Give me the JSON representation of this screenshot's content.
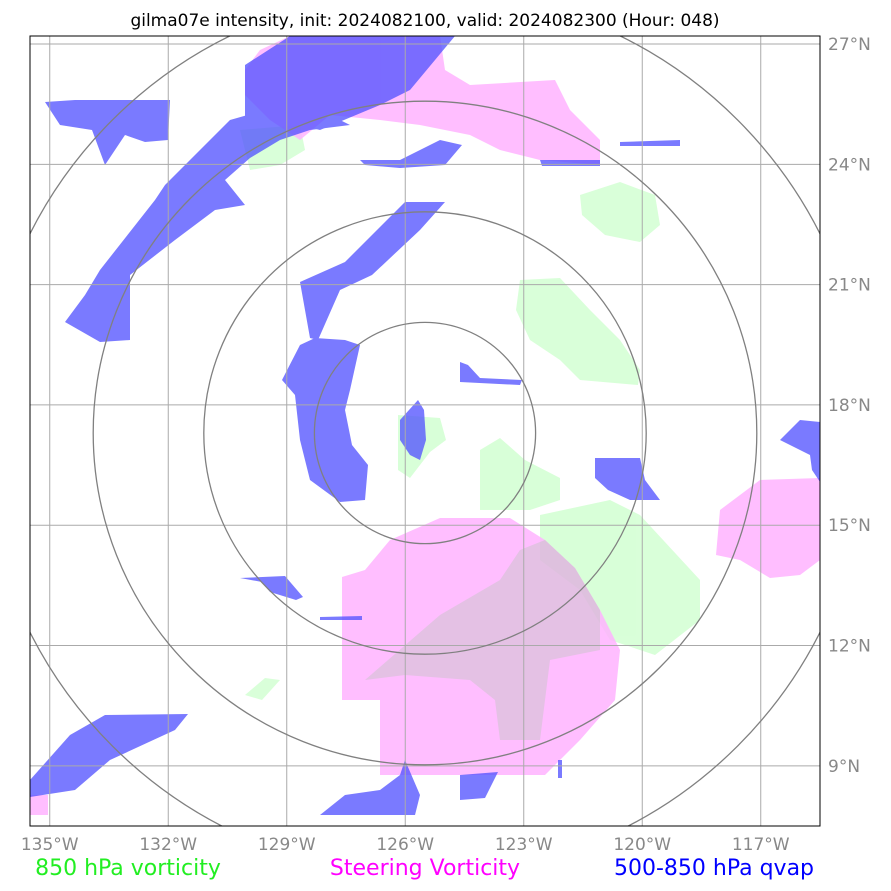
{
  "title": "gilma07e intensity, init: 2024082100, valid: 2024082300 (Hour: 048)",
  "map": {
    "lon_range": [
      -135.5,
      -115.5
    ],
    "lat_range": [
      7.5,
      27.2
    ],
    "lon_ticks": [
      {
        "value": -135,
        "label": "135°W"
      },
      {
        "value": -132,
        "label": "132°W"
      },
      {
        "value": -129,
        "label": "129°W"
      },
      {
        "value": -126,
        "label": "126°W"
      },
      {
        "value": -123,
        "label": "123°W"
      },
      {
        "value": -120,
        "label": "120°W"
      },
      {
        "value": -117,
        "label": "117°W"
      }
    ],
    "lat_ticks": [
      {
        "value": 27,
        "label": "27°N"
      },
      {
        "value": 24,
        "label": "24°N"
      },
      {
        "value": 21,
        "label": "21°N"
      },
      {
        "value": 18,
        "label": "18°N"
      },
      {
        "value": 15,
        "label": "15°N"
      },
      {
        "value": 12,
        "label": "12°N"
      },
      {
        "value": 9,
        "label": "9°N"
      }
    ],
    "storm_center": {
      "lon": -125.5,
      "lat": 17.3
    },
    "range_ring_radii_deg": [
      2.8,
      5.6,
      8.4,
      11.2
    ],
    "colors": {
      "vorticity_850": "#ccffcc",
      "steering_vorticity": "#ffb3ff",
      "qvap": "#5555ff",
      "grid": "#aaaaaa",
      "ring": "#808080"
    }
  },
  "legend": [
    {
      "label": "850 hPa vorticity",
      "color": "#22ee22"
    },
    {
      "label": "Steering Vorticity",
      "color": "#ff00ff"
    },
    {
      "label": "500-850 hPa qvap",
      "color": "#0000ff"
    }
  ]
}
